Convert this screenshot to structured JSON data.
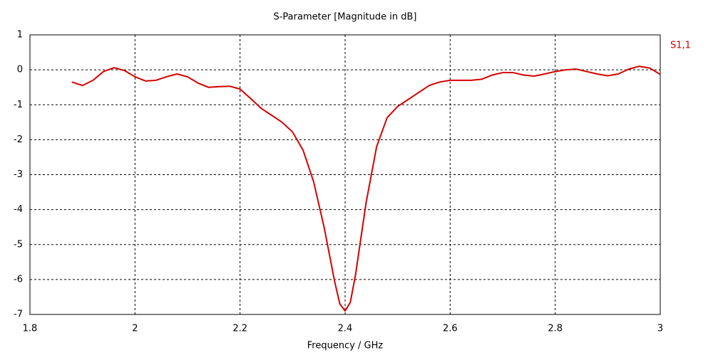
{
  "chart_data": {
    "type": "line",
    "title": "S-Parameter [Magnitude in dB]",
    "x_label": "Frequency / GHz",
    "x": [
      1.88,
      1.9,
      1.92,
      1.94,
      1.96,
      1.98,
      2.0,
      2.02,
      2.04,
      2.06,
      2.08,
      2.1,
      2.12,
      2.14,
      2.16,
      2.18,
      2.2,
      2.22,
      2.24,
      2.26,
      2.28,
      2.3,
      2.32,
      2.34,
      2.36,
      2.38,
      2.39,
      2.4,
      2.41,
      2.42,
      2.44,
      2.46,
      2.48,
      2.5,
      2.52,
      2.54,
      2.56,
      2.58,
      2.6,
      2.62,
      2.64,
      2.66,
      2.68,
      2.7,
      2.72,
      2.74,
      2.76,
      2.78,
      2.8,
      2.82,
      2.84,
      2.86,
      2.88,
      2.9,
      2.92,
      2.94,
      2.96,
      2.98,
      3.0
    ],
    "series": [
      {
        "name": "S1,1",
        "color": "#d40000",
        "values": [
          -0.35,
          -0.45,
          -0.3,
          -0.05,
          0.06,
          -0.02,
          -0.2,
          -0.32,
          -0.3,
          -0.2,
          -0.12,
          -0.2,
          -0.38,
          -0.5,
          -0.48,
          -0.47,
          -0.55,
          -0.82,
          -1.1,
          -1.3,
          -1.5,
          -1.78,
          -2.3,
          -3.2,
          -4.5,
          -6.05,
          -6.7,
          -6.9,
          -6.65,
          -5.85,
          -3.8,
          -2.2,
          -1.37,
          -1.05,
          -0.85,
          -0.65,
          -0.45,
          -0.35,
          -0.3,
          -0.3,
          -0.3,
          -0.27,
          -0.15,
          -0.08,
          -0.08,
          -0.15,
          -0.18,
          -0.12,
          -0.05,
          0,
          0.02,
          -0.05,
          -0.12,
          -0.17,
          -0.12,
          0.02,
          0.1,
          0.05,
          -0.13
        ]
      }
    ],
    "xlim": [
      1.8,
      3.0
    ],
    "xticks": [
      1.8,
      2,
      2.2,
      2.4,
      2.6,
      2.8,
      3
    ],
    "ylim": [
      -7,
      1
    ],
    "yticks": [
      -7,
      -6,
      -5,
      -4,
      -3,
      -2,
      -1,
      0,
      1
    ],
    "grid": true
  }
}
